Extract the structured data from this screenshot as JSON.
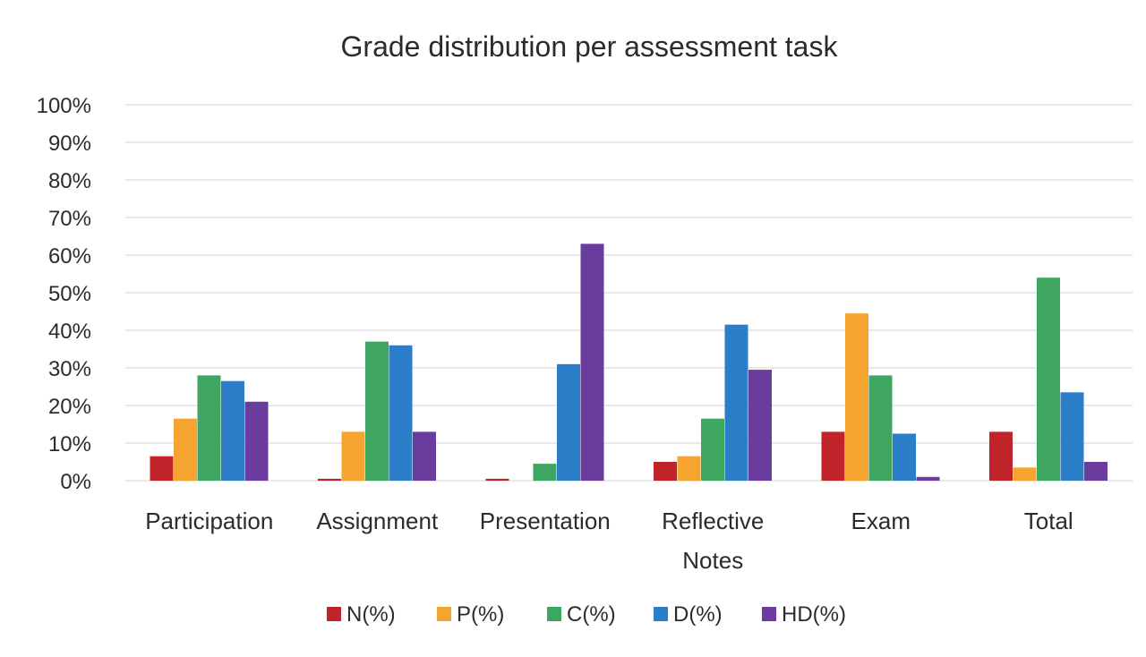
{
  "chart_data": {
    "type": "bar",
    "title": "Grade distribution per assessment task",
    "xlabel": "",
    "ylabel": "",
    "ylim": [
      0,
      100
    ],
    "y_ticks": [
      "0%",
      "10%",
      "20%",
      "30%",
      "40%",
      "50%",
      "60%",
      "70%",
      "80%",
      "90%",
      "100%"
    ],
    "categories": [
      [
        "Participation"
      ],
      [
        "Assignment"
      ],
      [
        "Presentation"
      ],
      [
        "Reflective",
        "Notes"
      ],
      [
        "Exam"
      ],
      [
        "Total"
      ]
    ],
    "series": [
      {
        "name": "N(%)",
        "color": "#c0242a",
        "values": [
          6.5,
          0.5,
          0.5,
          5,
          13,
          13
        ]
      },
      {
        "name": "P(%)",
        "color": "#f5a52f",
        "values": [
          16.5,
          13,
          0,
          6.5,
          44.5,
          3.5
        ]
      },
      {
        "name": "C(%)",
        "color": "#3ea660",
        "values": [
          28,
          37,
          4.5,
          16.5,
          28,
          54
        ]
      },
      {
        "name": "D(%)",
        "color": "#2c7ec8",
        "values": [
          26.5,
          36,
          31,
          41.5,
          12.5,
          23.5
        ]
      },
      {
        "name": "HD(%)",
        "color": "#6a3c9e",
        "values": [
          21,
          13,
          63,
          29.5,
          1,
          5
        ]
      }
    ],
    "grid": true,
    "legend_position": "bottom"
  }
}
